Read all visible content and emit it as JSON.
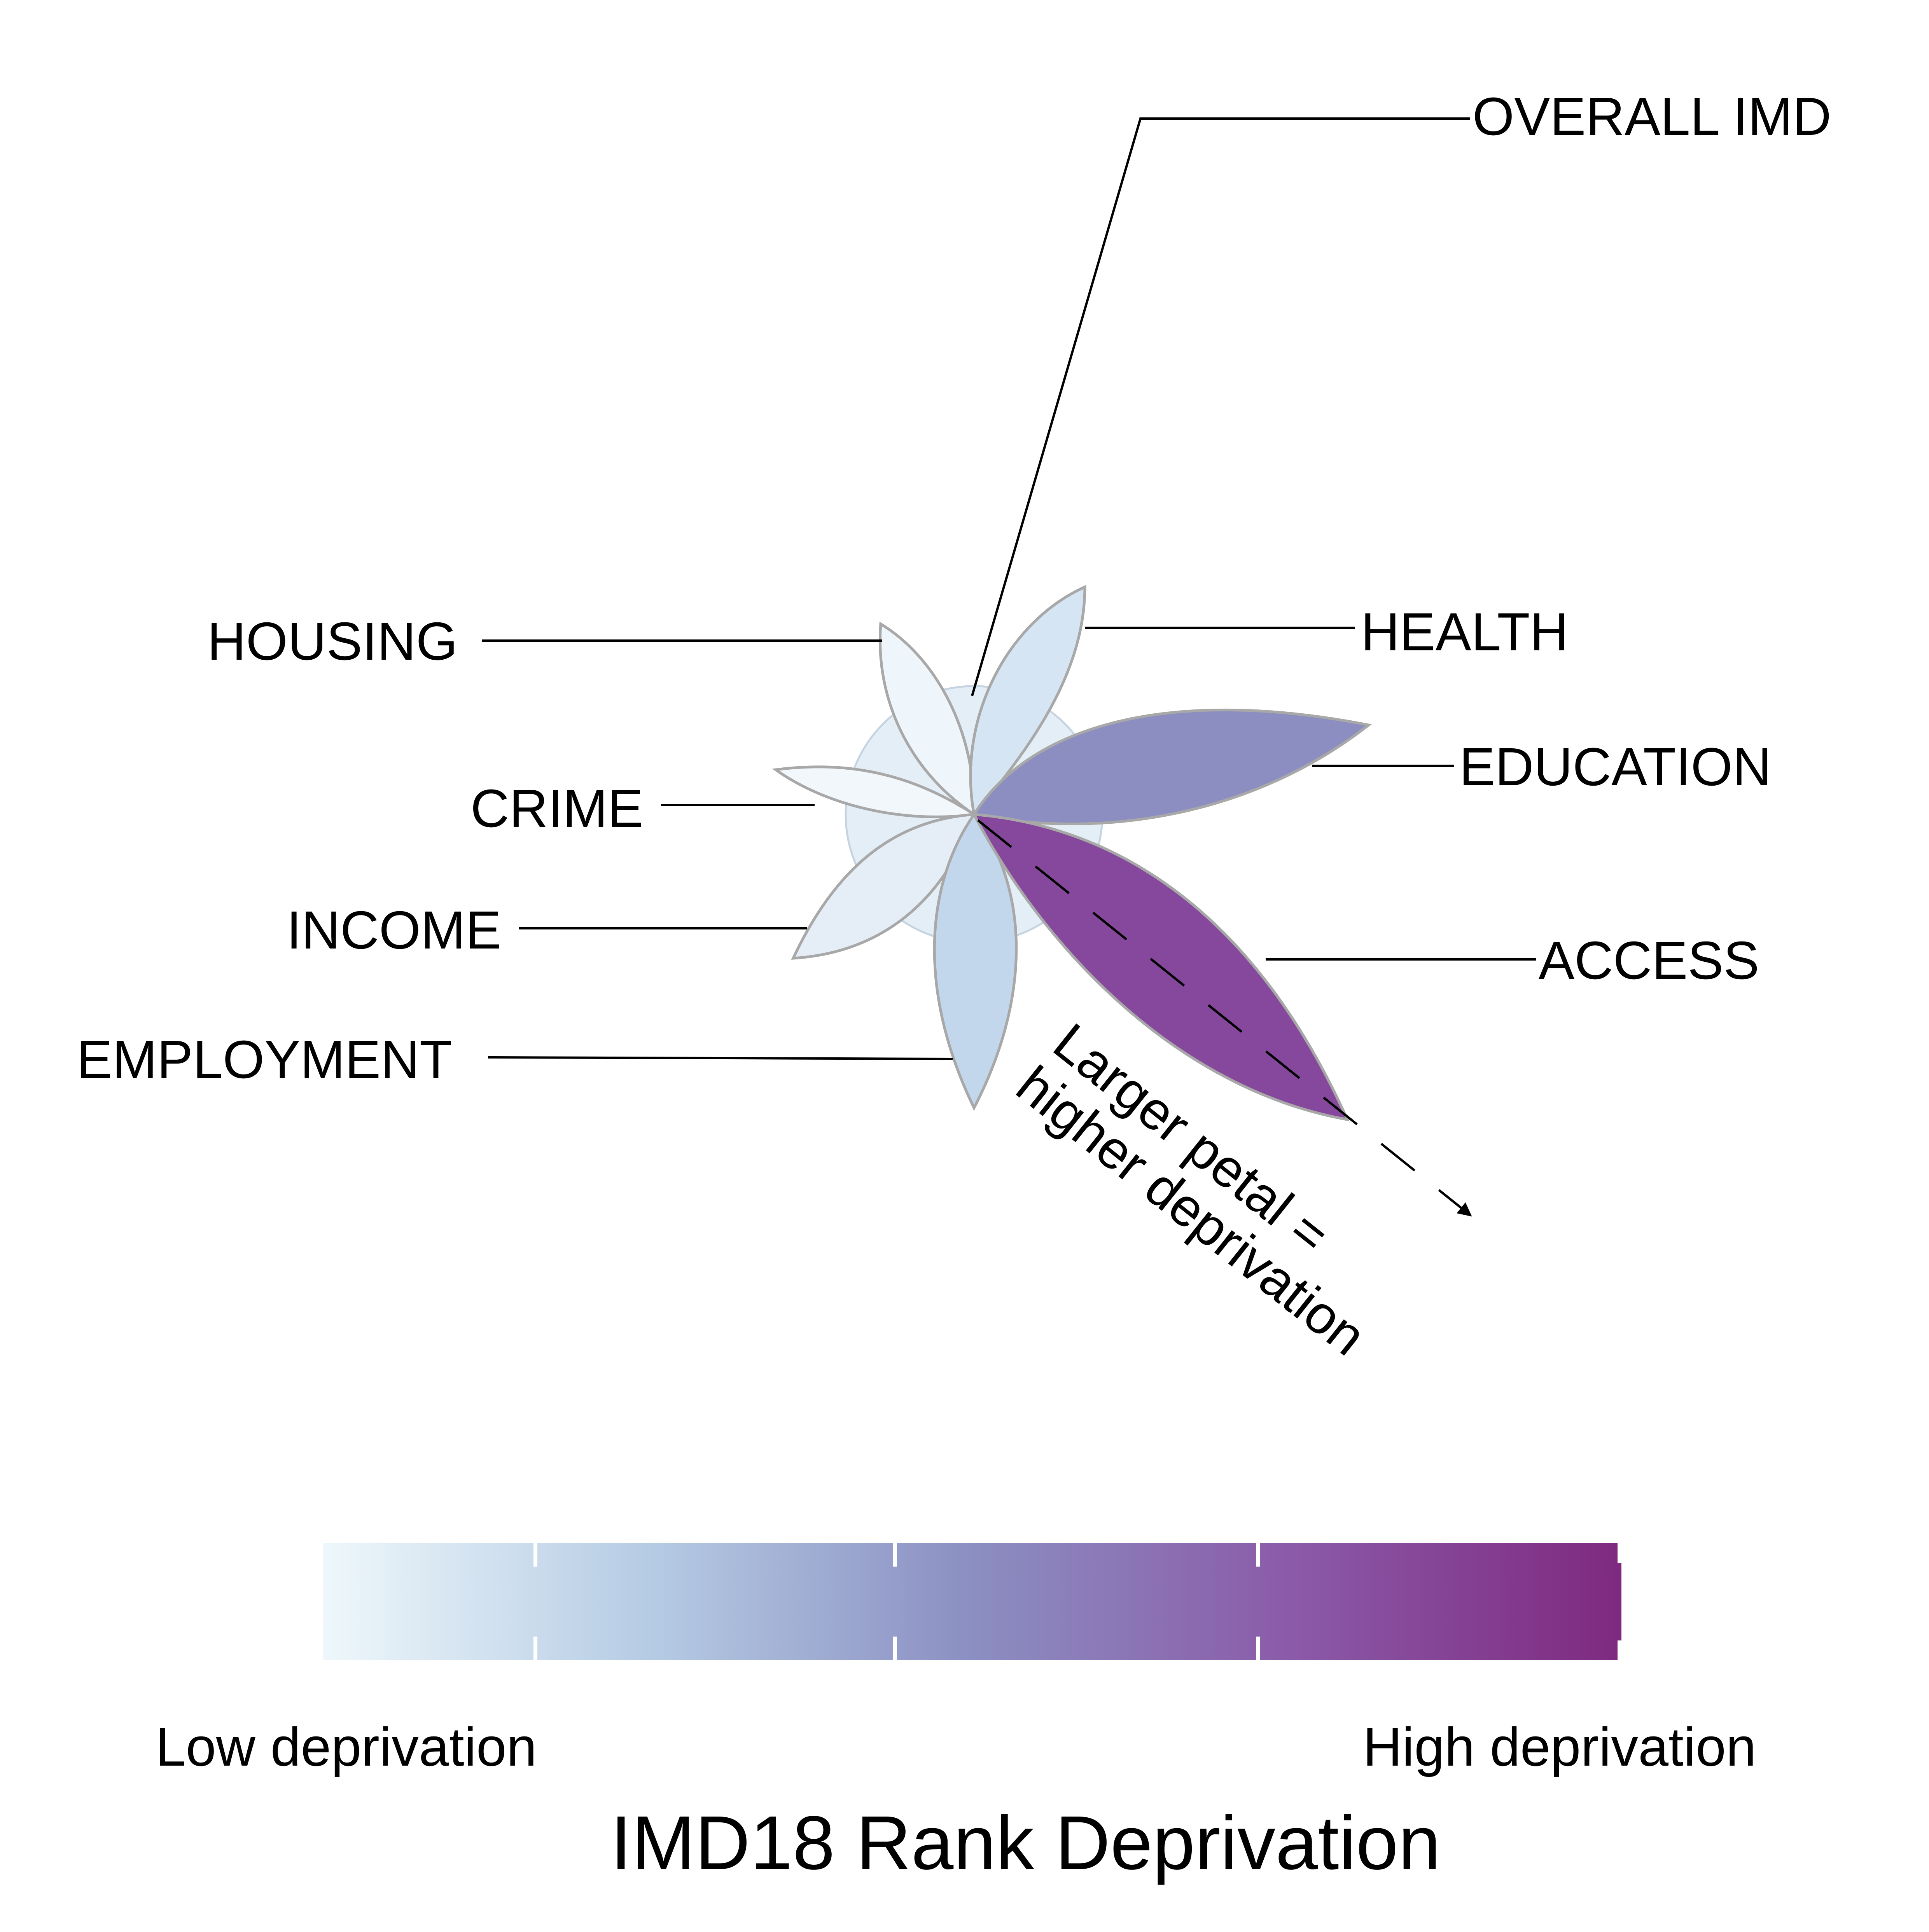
{
  "diagram": {
    "labels": {
      "overall": "OVERALL IMD",
      "housing": "HOUSING",
      "health": "HEALTH",
      "education": "EDUCATION",
      "crime": "CRIME",
      "income": "INCOME",
      "access": "ACCESS",
      "employment": "EMPLOYMENT"
    },
    "hint_line1": "Larger petal =",
    "hint_line2": "higher deprivation"
  },
  "legend": {
    "low_label": "Low deprivation",
    "high_label": "High deprivation",
    "title": "IMD18 Rank Deprivation",
    "gradient_colors": [
      "#eef7fb",
      "#b6cce4",
      "#8b8fc2",
      "#8b5aa8",
      "#7e2a80"
    ]
  },
  "colors": {
    "overall_circle": "#e4eef7",
    "petal_outline": "#a8a8a8",
    "health_petal": "#d6e5f3",
    "housing_petal": "#eff6fb",
    "crime_petal": "#f1f7fb",
    "income_petal": "#e5eef7",
    "employment_petal": "#c2d6ec",
    "education_petal": "#8c8ec2",
    "access_petal": "#86489c"
  }
}
